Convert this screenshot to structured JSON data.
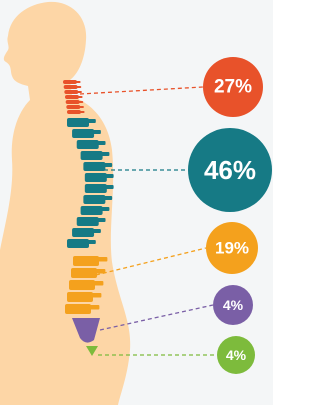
{
  "regions": [
    {
      "label": "27%",
      "color": "#e8522a"
    },
    {
      "label": "46%",
      "color": "#167a85"
    },
    {
      "label": "19%",
      "color": "#f4a11d"
    },
    {
      "label": "4%",
      "color": "#7a5fa6"
    },
    {
      "label": "4%",
      "color": "#7dbb3c"
    }
  ]
}
